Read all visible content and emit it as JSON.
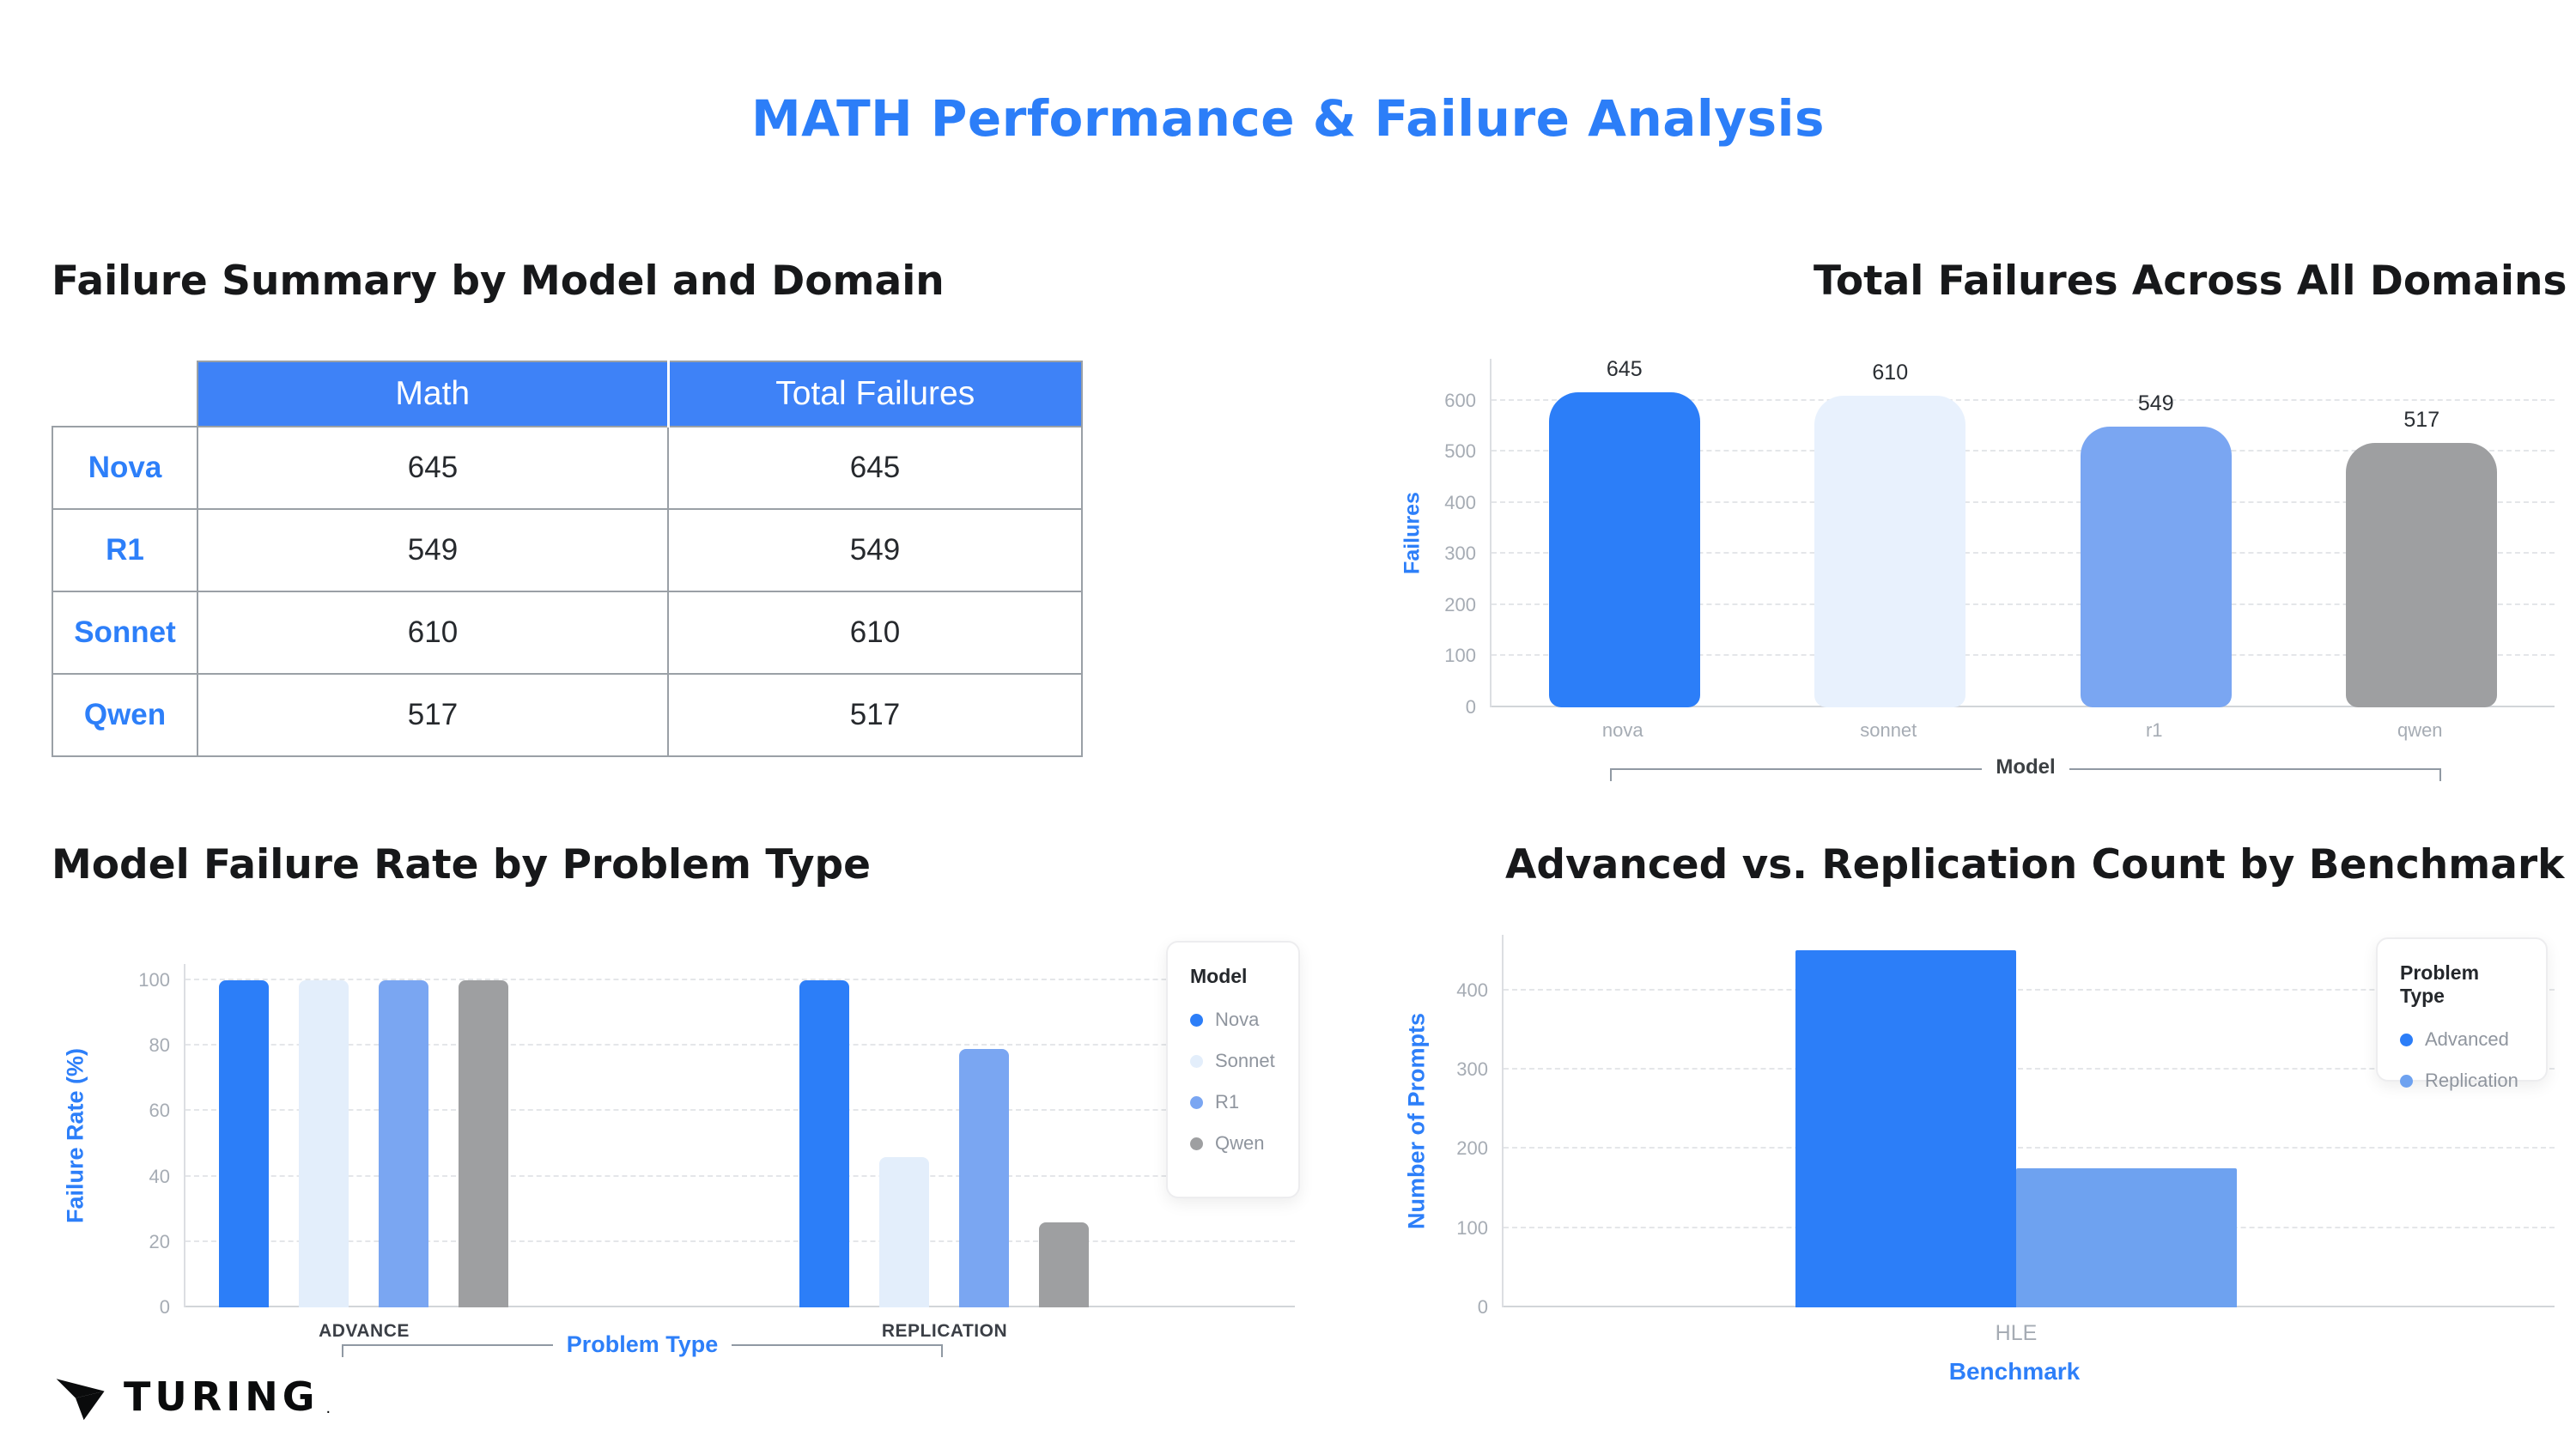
{
  "page_title": "MATH Performance & Failure Analysis",
  "summary_table": {
    "title": "Failure Summary by Model and Domain",
    "columns": [
      "Math",
      "Total Failures"
    ],
    "rows": [
      {
        "model": "Nova",
        "math": "645",
        "total": "645"
      },
      {
        "model": "R1",
        "math": "549",
        "total": "549"
      },
      {
        "model": "Sonnet",
        "math": "610",
        "total": "610"
      },
      {
        "model": "Qwen",
        "math": "517",
        "total": "517"
      }
    ]
  },
  "chart_data": [
    {
      "id": "total-failures",
      "type": "bar",
      "title": "Total Failures Across All Domains",
      "categories": [
        "nova",
        "sonnet",
        "r1",
        "qwen"
      ],
      "values": [
        645,
        610,
        549,
        517
      ],
      "bar_colors": [
        "#2c7ef8",
        "#e8f1fd",
        "#7aa6f2",
        "#9e9fa1"
      ],
      "ylabel": "Failures",
      "xlabel": "Model",
      "yticks": [
        0,
        100,
        200,
        300,
        400,
        500,
        600
      ],
      "ylim": [
        0,
        682
      ],
      "grid": "dashed horizontal"
    },
    {
      "id": "failure-rate-by-problem-type",
      "type": "bar",
      "title": "Model Failure Rate by Problem Type",
      "categories": [
        "ADVANCE",
        "REPLICATION"
      ],
      "series": [
        {
          "name": "Nova",
          "color": "#2c7ef8",
          "values": [
            100,
            100
          ]
        },
        {
          "name": "Sonnet",
          "color": "#e3eefb",
          "values": [
            100,
            46
          ]
        },
        {
          "name": "R1",
          "color": "#7aa6f2",
          "values": [
            100,
            79
          ]
        },
        {
          "name": "Qwen",
          "color": "#9e9fa1",
          "values": [
            100,
            26
          ]
        }
      ],
      "ylabel": "Failure Rate (%)",
      "xlabel": "Problem Type",
      "yticks": [
        0,
        20,
        40,
        60,
        80,
        100
      ],
      "ylim": [
        0,
        105
      ],
      "legend_title": "Model",
      "legend_position": "right",
      "grid": "dashed horizontal"
    },
    {
      "id": "advanced-vs-replication",
      "type": "bar",
      "title": "Advanced vs. Replication Count by Benchmark",
      "categories": [
        "HLE"
      ],
      "series": [
        {
          "name": "Advanced",
          "color": "#2c7ef8",
          "values": [
            450
          ]
        },
        {
          "name": "Replication",
          "color": "#6ea2f0",
          "values": [
            175
          ]
        }
      ],
      "ylabel": "Number of Prompts",
      "xlabel": "Benchmark",
      "yticks": [
        0,
        100,
        200,
        300,
        400
      ],
      "ylim": [
        0,
        470
      ],
      "legend_title": "Problem Type",
      "legend_position": "top-right",
      "grid": "dashed horizontal"
    }
  ],
  "colors": {
    "accent": "#2c7ef8",
    "table_header_bg": "#3e82f7",
    "grid": "#e4e6e9",
    "tick_text": "#a6acb4"
  },
  "brand": {
    "name": "TURING",
    "mark": "."
  }
}
